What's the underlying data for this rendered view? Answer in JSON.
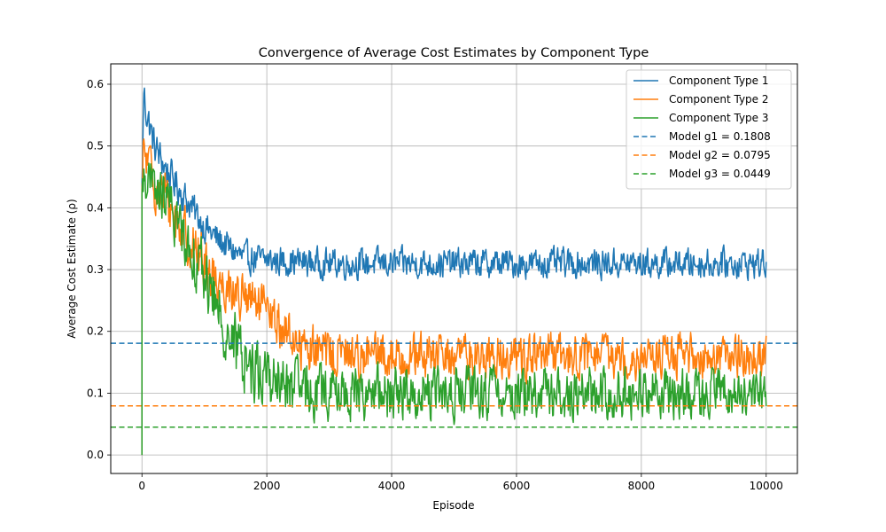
{
  "chart_data": {
    "type": "line",
    "title": "Convergence of Average Cost Estimates by Component Type",
    "xlabel": "Episode",
    "ylabel": "Average Cost Estimate (ρ)",
    "xlim": [
      -500,
      10500
    ],
    "ylim": [
      -0.03,
      0.633
    ],
    "xticks": [
      0,
      2000,
      4000,
      6000,
      8000,
      10000
    ],
    "yticks": [
      0.0,
      0.1,
      0.2,
      0.3,
      0.4,
      0.5,
      0.6
    ],
    "grid": true,
    "legend_position": "top-right",
    "series": [
      {
        "name": "Component Type 1",
        "color": "#1f77b4",
        "style": "solid",
        "trend": {
          "x": [
            0,
            30,
            60,
            200,
            400,
            600,
            800,
            1000,
            1200,
            1400,
            1600,
            2000,
            3000,
            10000
          ],
          "y": [
            0.43,
            0.59,
            0.56,
            0.5,
            0.46,
            0.43,
            0.4,
            0.37,
            0.35,
            0.335,
            0.32,
            0.315,
            0.31,
            0.31
          ]
        },
        "noise_amplitude": [
          [
            0,
            0.03
          ],
          [
            2000,
            0.025
          ],
          [
            10000,
            0.025
          ]
        ],
        "min_value": 0.26,
        "max_value": 0.604
      },
      {
        "name": "Component Type 2",
        "color": "#ff7f0e",
        "style": "solid",
        "trend": {
          "x": [
            0,
            30,
            60,
            200,
            400,
            600,
            800,
            1000,
            1200,
            1400,
            1600,
            1800,
            2000,
            2200,
            2400,
            2600,
            3000,
            4000,
            10000
          ],
          "y": [
            0.41,
            0.5,
            0.48,
            0.44,
            0.41,
            0.37,
            0.34,
            0.31,
            0.285,
            0.27,
            0.255,
            0.245,
            0.23,
            0.21,
            0.19,
            0.175,
            0.165,
            0.16,
            0.16
          ]
        },
        "noise_amplitude": [
          [
            0,
            0.045
          ],
          [
            2000,
            0.04
          ],
          [
            10000,
            0.035
          ]
        ],
        "min_value": 0.07,
        "max_value": 0.56
      },
      {
        "name": "Component Type 3",
        "color": "#2ca02c",
        "style": "solid",
        "trend": {
          "x": [
            0,
            30,
            60,
            200,
            400,
            600,
            800,
            1000,
            1200,
            1400,
            1600,
            1800,
            2000,
            2200,
            2500,
            3000,
            4000,
            10000
          ],
          "y": [
            0.4,
            0.46,
            0.45,
            0.43,
            0.41,
            0.37,
            0.33,
            0.29,
            0.24,
            0.19,
            0.16,
            0.14,
            0.13,
            0.115,
            0.105,
            0.1,
            0.1,
            0.1
          ]
        },
        "noise_amplitude": [
          [
            0,
            0.04
          ],
          [
            1000,
            0.05
          ],
          [
            1800,
            0.055
          ],
          [
            3000,
            0.045
          ],
          [
            10000,
            0.04
          ]
        ],
        "min_value": 0.004,
        "max_value": 0.56
      },
      {
        "name": "Model g1 = 0.1808",
        "color": "#1f77b4",
        "style": "dashed",
        "value": 0.1808
      },
      {
        "name": "Model g2 = 0.0795",
        "color": "#ff7f0e",
        "style": "dashed",
        "value": 0.0795
      },
      {
        "name": "Model g3 = 0.0449",
        "color": "#2ca02c",
        "style": "dashed",
        "value": 0.0449
      }
    ]
  }
}
